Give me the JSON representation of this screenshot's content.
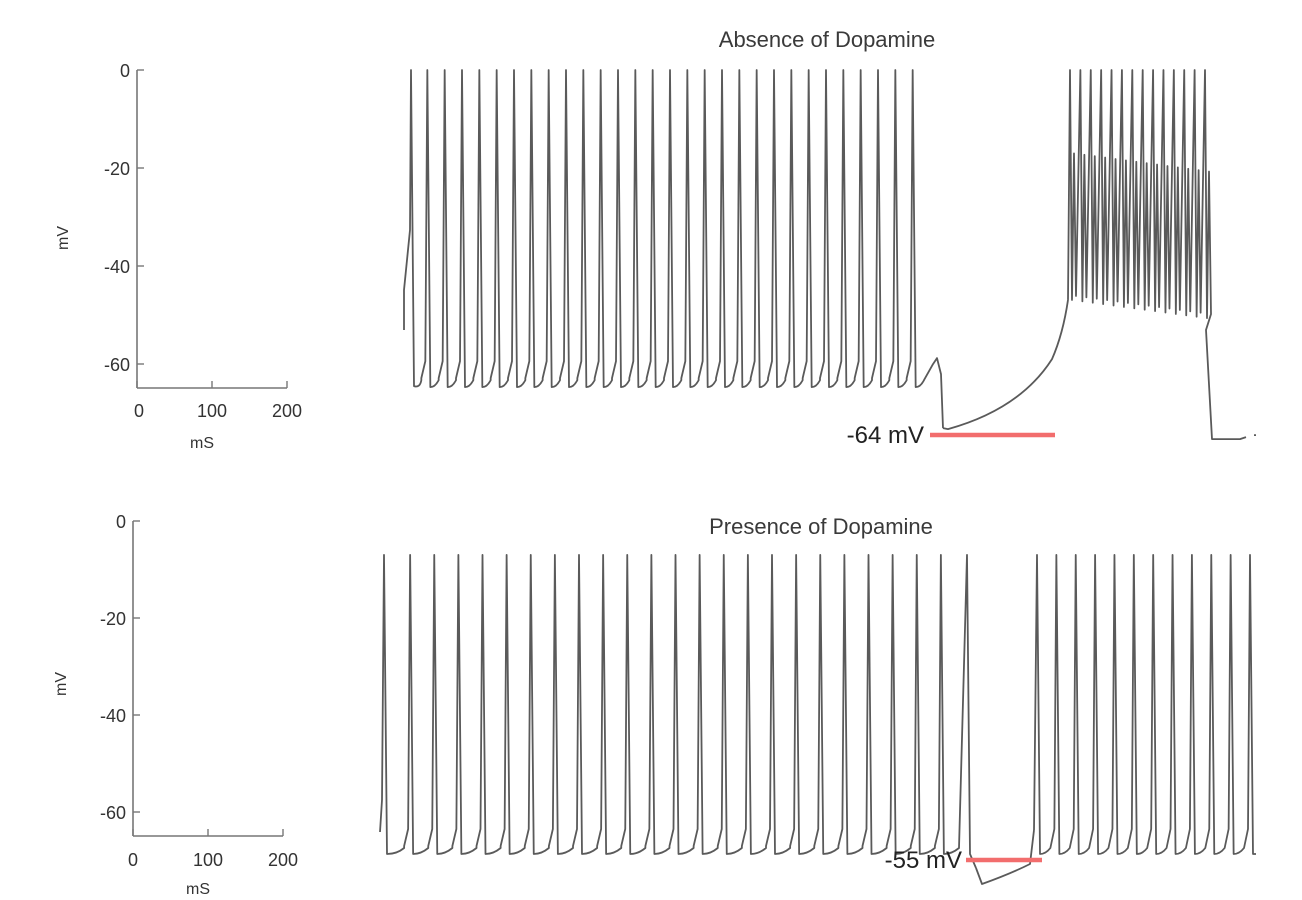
{
  "chart_data": [
    {
      "type": "line",
      "title": "Absence of Dopamine",
      "scale_bar": {
        "xlabel": "mS",
        "ylabel": "mV",
        "xticks": [
          "0",
          "100",
          "200"
        ],
        "yticks": [
          "0",
          "-20",
          "-40",
          "-60"
        ],
        "xlim": [
          0,
          200
        ],
        "ylim": [
          -65,
          0
        ]
      },
      "trace": {
        "phase1": {
          "spike_count": 30,
          "baseline_mV": -64,
          "peak_mV": 0
        },
        "hyperpolarization": {
          "min_mV": -64
        },
        "phase2": {
          "spike_count": 14,
          "peak_mV": 0,
          "plateau_top_mV": -15,
          "plateau_bottom_mV": -47
        },
        "end_mV": -64
      },
      "annotation": {
        "text": "-64 mV",
        "color": "#f26d6d"
      }
    },
    {
      "type": "line",
      "title": "Presence of Dopamine",
      "scale_bar": {
        "xlabel": "mS",
        "ylabel": "mV",
        "xticks": [
          "0",
          "100",
          "200"
        ],
        "yticks": [
          "0",
          "-20",
          "-40",
          "-60"
        ],
        "xlim": [
          0,
          200
        ],
        "ylim": [
          -65,
          0
        ]
      },
      "trace": {
        "phase1": {
          "spike_count": 24,
          "baseline_mV": -55,
          "peak_mV": -10
        },
        "hyperpolarization": {
          "min_mV": -55
        },
        "phase2": {
          "spike_count": 12,
          "peak_mV": -10
        },
        "end_mV": -55
      },
      "annotation": {
        "text": "-55 mV",
        "color": "#f26d6d"
      }
    }
  ]
}
